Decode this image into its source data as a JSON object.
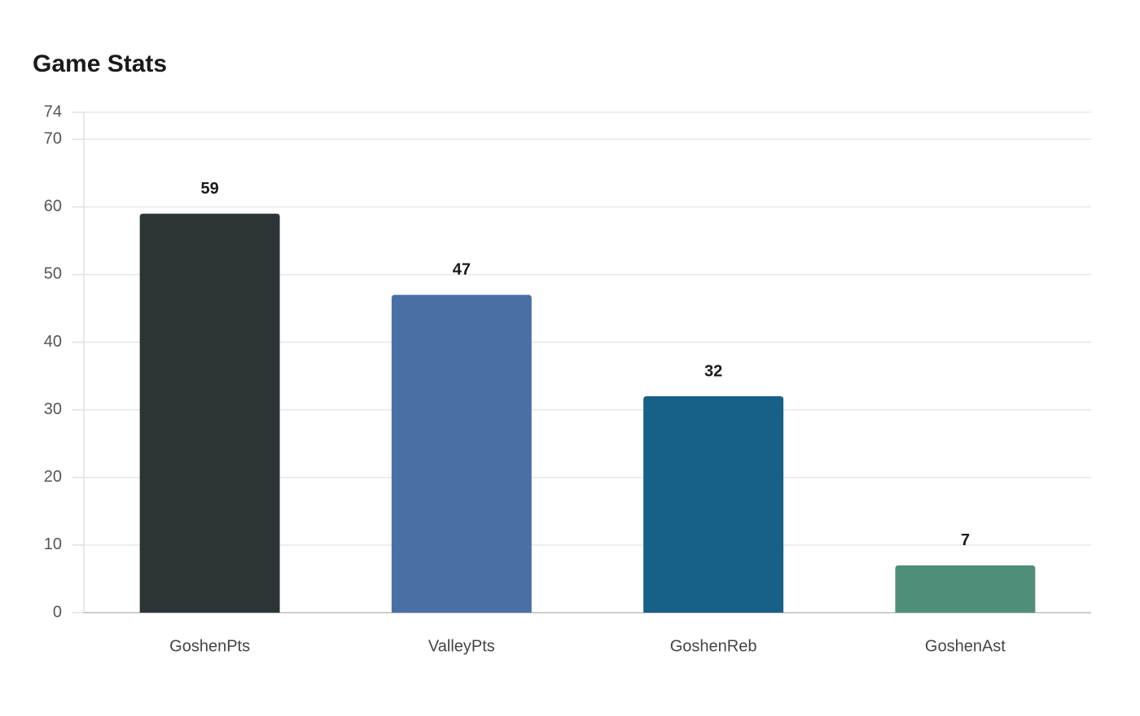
{
  "chart_data": {
    "type": "bar",
    "title": "Game Stats",
    "categories": [
      "GoshenPts",
      "ValleyPts",
      "GoshenReb",
      "GoshenAst"
    ],
    "values": [
      59,
      47,
      32,
      7
    ],
    "colors": [
      "#2d3436",
      "#4a6fa5",
      "#176087",
      "#4f8f7a"
    ],
    "ylim": [
      0,
      74
    ],
    "yticks": [
      0,
      10,
      20,
      30,
      40,
      50,
      60,
      70,
      74
    ],
    "grid": true
  }
}
